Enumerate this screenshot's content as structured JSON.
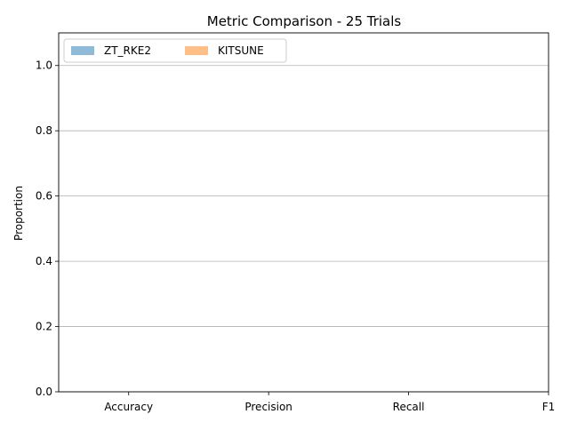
{
  "chart_data": {
    "type": "bar",
    "title": "Metric Comparison - 25 Trials",
    "xlabel": "",
    "ylabel": "Proportion",
    "categories": [
      "Accuracy",
      "Precision",
      "Recall",
      "F1"
    ],
    "series": [
      {
        "name": "ZT_RKE2",
        "values": [
          0,
          0,
          0,
          0
        ],
        "color": "#1f77b4",
        "alpha": 0.5
      },
      {
        "name": "KITSUNE",
        "values": [
          0,
          0,
          0,
          0
        ],
        "color": "#ff7f0e",
        "alpha": 0.5
      }
    ],
    "ylim": [
      0,
      1.1
    ],
    "yticks": [
      0.0,
      0.2,
      0.4,
      0.6,
      0.8,
      1.0
    ],
    "ytick_labels": [
      "0.0",
      "0.2",
      "0.4",
      "0.6",
      "0.8",
      "1.0"
    ],
    "grid": {
      "y": true,
      "x": false
    },
    "legend": {
      "placement": "top-left",
      "columns": 2
    }
  }
}
